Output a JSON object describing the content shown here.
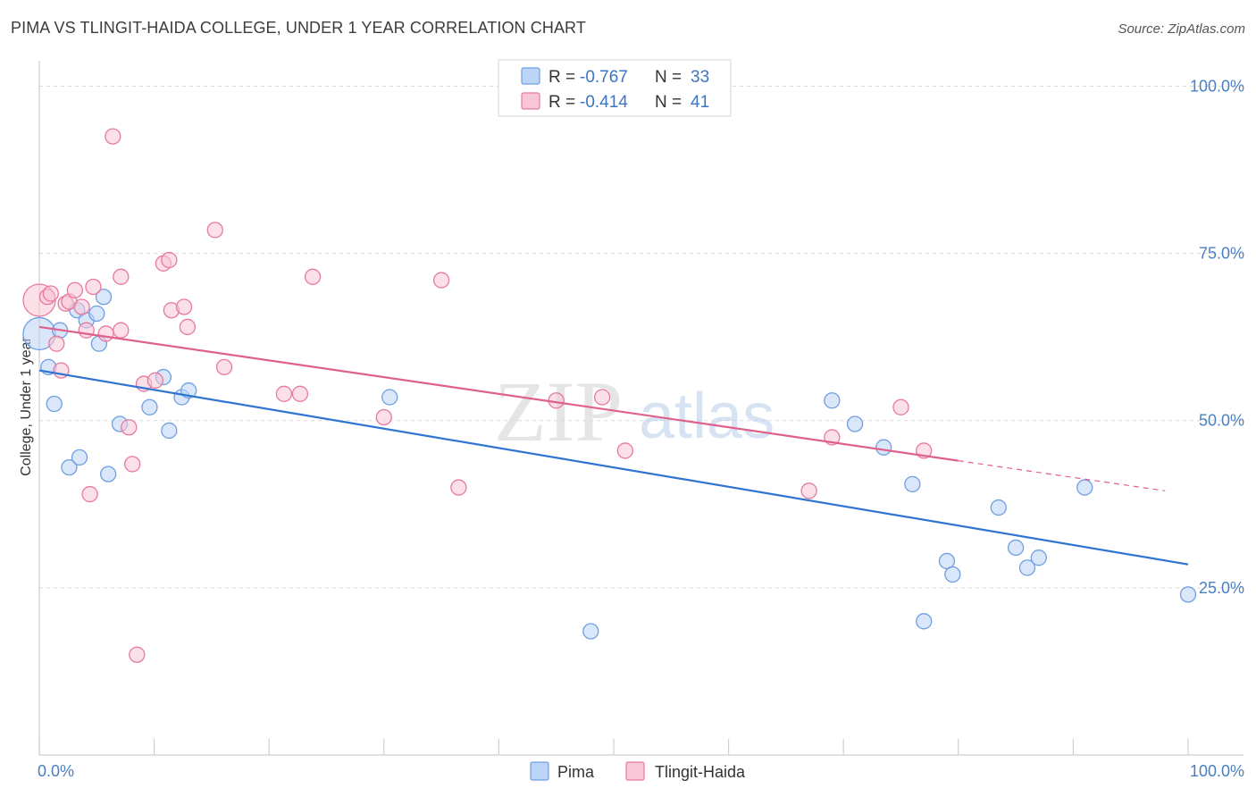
{
  "chart_data": {
    "type": "scatter",
    "title": "PIMA VS TLINGIT-HAIDA COLLEGE, UNDER 1 YEAR CORRELATION CHART",
    "source": "Source: ZipAtlas.com",
    "ylabel": "College, Under 1 year",
    "xlabel": "",
    "xlim": [
      0,
      100
    ],
    "ylim": [
      0,
      100
    ],
    "x_tick_labels": [
      {
        "value": 0,
        "label": "0.0%"
      },
      {
        "value": 100,
        "label": "100.0%"
      }
    ],
    "y_tick_labels": [
      {
        "value": 25,
        "label": "25.0%"
      },
      {
        "value": 50,
        "label": "50.0%"
      },
      {
        "value": 75,
        "label": "75.0%"
      },
      {
        "value": 100,
        "label": "100.0%"
      }
    ],
    "watermark": {
      "part1": "ZIP",
      "part2": "atlas"
    },
    "legend": [
      {
        "name": "Pima",
        "r_label": "R =",
        "r_value": "-0.767",
        "n_label": "N =",
        "n_value": "33",
        "color": "#6f9fe0",
        "fill": "#bcd4f5"
      },
      {
        "name": "Tlingit-Haida",
        "r_label": "R =",
        "r_value": "-0.414",
        "n_label": "N =",
        "n_value": "41",
        "color": "#e8799e",
        "fill": "#f8c6d6"
      }
    ],
    "series": [
      {
        "name": "Pima",
        "color": "#6f9fe0",
        "fill": "#bcd4f5",
        "trend_color": "#2f74d0",
        "trend": {
          "x0": 0,
          "y0": 57.5,
          "x1": 100,
          "y1": 28.5,
          "dash_until": 100
        },
        "points": [
          [
            0,
            63
          ],
          [
            0.8,
            58
          ],
          [
            1.3,
            52.5
          ],
          [
            1.8,
            63.5
          ],
          [
            2.6,
            43
          ],
          [
            3.3,
            66.5
          ],
          [
            3.5,
            44.5
          ],
          [
            4.1,
            65
          ],
          [
            5.0,
            66
          ],
          [
            5.2,
            61.5
          ],
          [
            5.6,
            68.5
          ],
          [
            6.0,
            42
          ],
          [
            7.0,
            49.5
          ],
          [
            9.6,
            52
          ],
          [
            10.8,
            56.5
          ],
          [
            11.3,
            48.5
          ],
          [
            12.4,
            53.5
          ],
          [
            13.0,
            54.5
          ],
          [
            30.5,
            53.5
          ],
          [
            48.0,
            18.5
          ],
          [
            69.0,
            53
          ],
          [
            71.0,
            49.5
          ],
          [
            73.5,
            46
          ],
          [
            76.0,
            40.5
          ],
          [
            77.0,
            20
          ],
          [
            79.0,
            29
          ],
          [
            79.5,
            27
          ],
          [
            83.5,
            37
          ],
          [
            85.0,
            31
          ],
          [
            86.0,
            28
          ],
          [
            87.0,
            29.5
          ],
          [
            91.0,
            40
          ],
          [
            100,
            24
          ]
        ]
      },
      {
        "name": "Tlingit-Haida",
        "color": "#e8799e",
        "fill": "#f8c6d6",
        "trend_color": "#e0608c",
        "trend": {
          "x0": 0,
          "y0": 64,
          "x1": 80,
          "y1": 44,
          "dash_until": 98
        },
        "points": [
          [
            0,
            68
          ],
          [
            0.7,
            68.5
          ],
          [
            1.0,
            69
          ],
          [
            1.5,
            61.5
          ],
          [
            1.9,
            57.5
          ],
          [
            2.3,
            67.5
          ],
          [
            2.6,
            67.8
          ],
          [
            3.1,
            69.5
          ],
          [
            3.7,
            67
          ],
          [
            4.1,
            63.5
          ],
          [
            4.4,
            39
          ],
          [
            4.7,
            70
          ],
          [
            5.8,
            63
          ],
          [
            7.1,
            71.5
          ],
          [
            7.1,
            63.5
          ],
          [
            6.4,
            92.5
          ],
          [
            7.8,
            49
          ],
          [
            8.1,
            43.5
          ],
          [
            8.5,
            15
          ],
          [
            9.1,
            55.5
          ],
          [
            10.1,
            56
          ],
          [
            10.8,
            73.5
          ],
          [
            11.3,
            74
          ],
          [
            11.5,
            66.5
          ],
          [
            12.6,
            67
          ],
          [
            12.9,
            64
          ],
          [
            15.3,
            78.5
          ],
          [
            16.1,
            58
          ],
          [
            21.3,
            54
          ],
          [
            22.7,
            54
          ],
          [
            23.8,
            71.5
          ],
          [
            30.0,
            50.5
          ],
          [
            35.0,
            71
          ],
          [
            36.5,
            40
          ],
          [
            45.0,
            53
          ],
          [
            49.0,
            53.5
          ],
          [
            51.0,
            45.5
          ],
          [
            67.0,
            39.5
          ],
          [
            69.0,
            47.5
          ],
          [
            75.0,
            52
          ],
          [
            77.0,
            45.5
          ]
        ]
      }
    ]
  }
}
